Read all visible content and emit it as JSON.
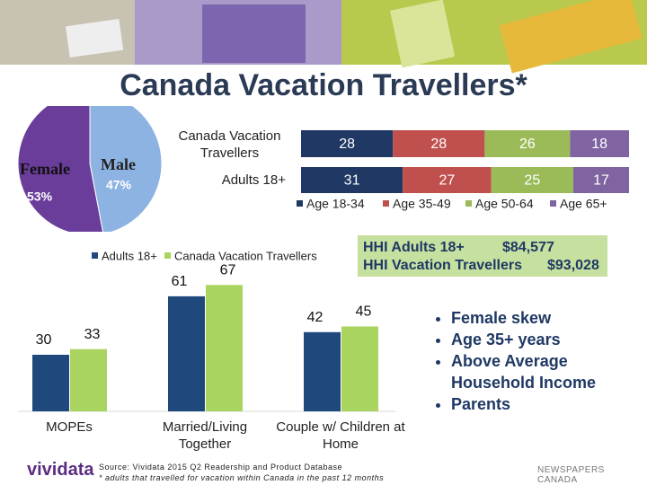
{
  "title": "Canada Vacation Travellers*",
  "chart_data": [
    {
      "type": "pie",
      "categories": [
        "Female",
        "Male"
      ],
      "values": [
        53,
        47
      ],
      "value_labels": [
        "53%",
        "47%"
      ],
      "colors": [
        "#6a3d9a",
        "#8db3e2"
      ]
    },
    {
      "type": "bar",
      "orientation": "horizontal",
      "stacked": true,
      "categories": [
        "Canada Vacation Travellers",
        "Adults 18+"
      ],
      "series": [
        {
          "name": "Age 18-34",
          "color": "#1f3864",
          "values": [
            28,
            31
          ]
        },
        {
          "name": "Age 35-49",
          "color": "#c0504d",
          "values": [
            28,
            27
          ]
        },
        {
          "name": "Age 50-64",
          "color": "#9bbb59",
          "values": [
            26,
            25
          ]
        },
        {
          "name": "Age 65+",
          "color": "#8064a2",
          "values": [
            18,
            17
          ]
        }
      ]
    },
    {
      "type": "bar",
      "categories": [
        "MOPEs",
        "Married/Living Together",
        "Couple w/ Children at Home"
      ],
      "series": [
        {
          "name": "Adults 18+",
          "color": "#1f497d",
          "values": [
            30,
            61,
            42
          ]
        },
        {
          "name": "Canada Vacation Travellers",
          "color": "#a9d45f",
          "values": [
            33,
            67,
            45
          ]
        }
      ]
    }
  ],
  "hhi": [
    {
      "label": "HHI Adults 18+",
      "value": "$84,577"
    },
    {
      "label": "HHI Vacation Travellers",
      "value": "$93,028"
    }
  ],
  "bullets": [
    "Female skew",
    "Age 35+ years",
    "Above Average Household Income",
    "Parents"
  ],
  "source": [
    "Source: Vividata 2015 Q2 Readership and Product Database",
    "* adults that travelled for vacation within Canada in the past 12 months"
  ],
  "logos": [
    "vividata",
    "NEWSPAPERS CANADA"
  ]
}
